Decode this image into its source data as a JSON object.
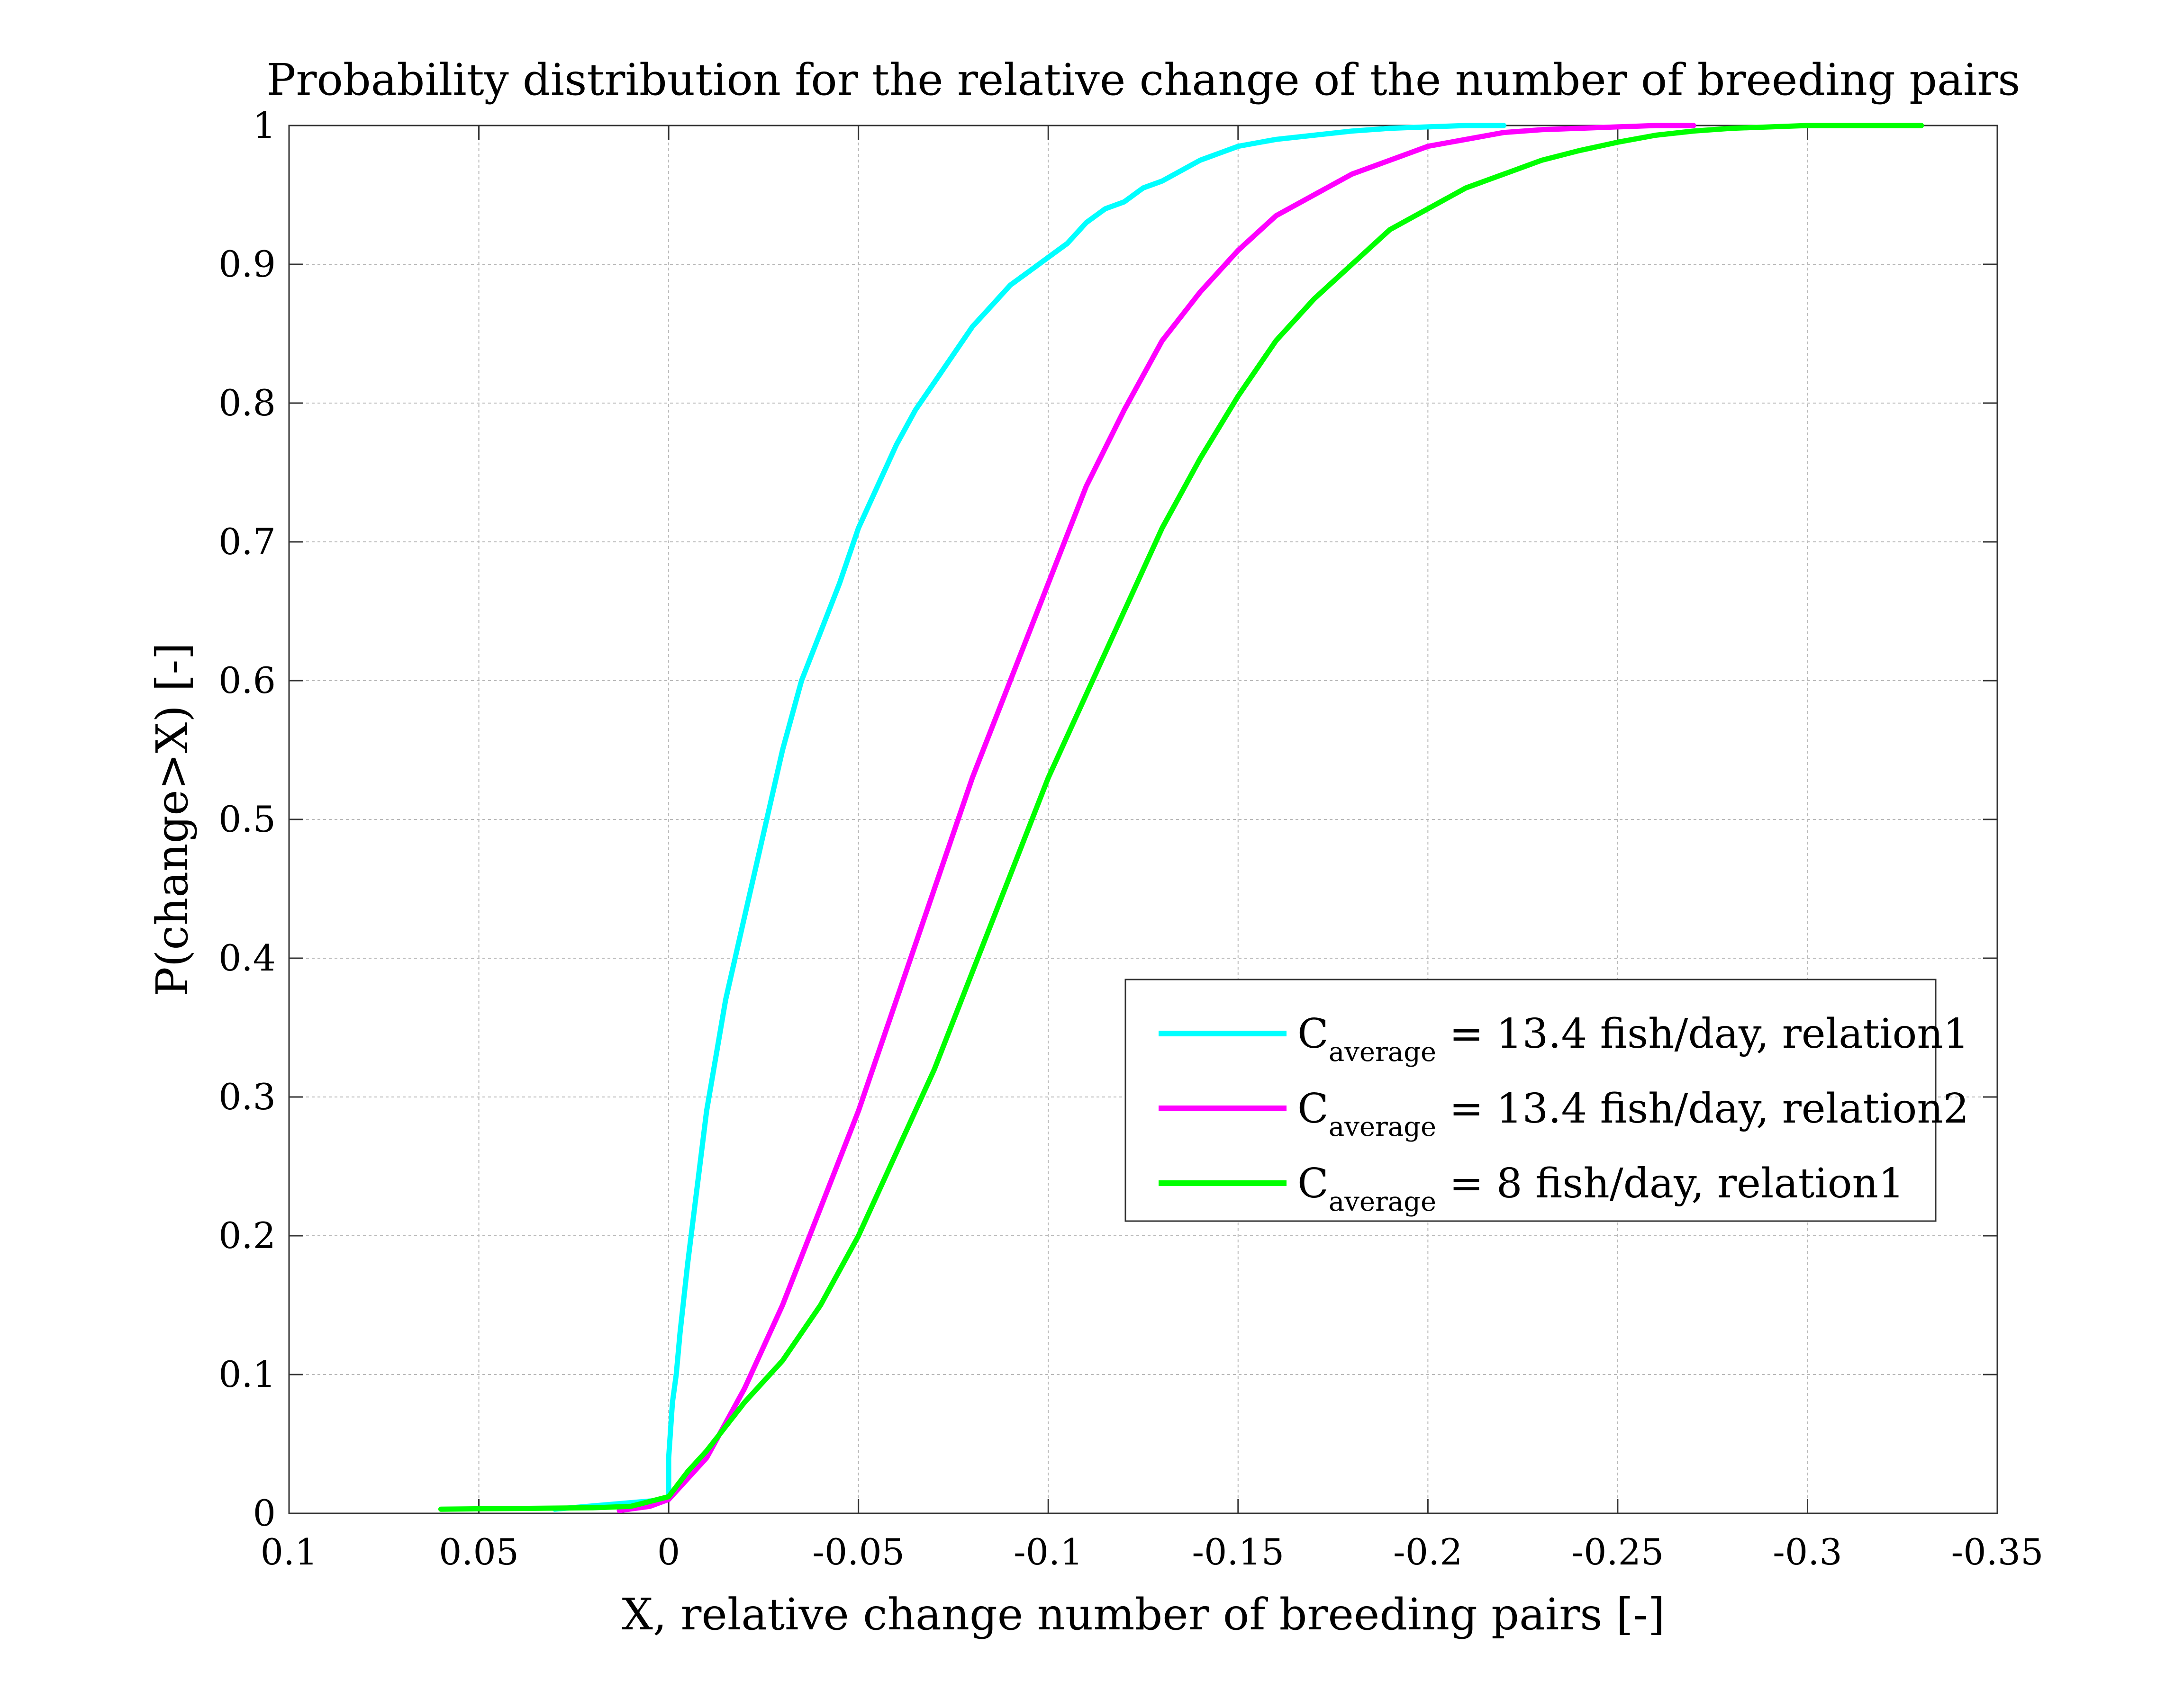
{
  "chart_data": {
    "type": "line",
    "title": "Probability distribution for the relative change of the number of breeding pairs",
    "xlabel": "X, relative change number of breeding pairs [-]",
    "ylabel": "P(change>X) [-]",
    "xlim": [
      0.1,
      -0.35
    ],
    "ylim": [
      0,
      1
    ],
    "x_reversed": true,
    "grid": true,
    "legend_position": "lower-right",
    "x_ticks": [
      "0.1",
      "0.05",
      "0",
      "-0.05",
      "-0.1",
      "-0.15",
      "-0.2",
      "-0.25",
      "-0.3",
      "-0.35"
    ],
    "x_tick_values": [
      0.1,
      0.05,
      0,
      -0.05,
      -0.1,
      -0.15,
      -0.2,
      -0.25,
      -0.3,
      -0.35
    ],
    "y_ticks": [
      "0",
      "0.1",
      "0.2",
      "0.3",
      "0.4",
      "0.5",
      "0.6",
      "0.7",
      "0.8",
      "0.9",
      "1"
    ],
    "y_tick_values": [
      0,
      0.1,
      0.2,
      0.3,
      0.4,
      0.5,
      0.6,
      0.7,
      0.8,
      0.9,
      1
    ],
    "series": [
      {
        "label_main": "C",
        "label_sub": "average",
        "label_rest": " = 13.4 fish/day, relation1",
        "color": "#00ffff",
        "x": [
          0.03,
          0.0,
          0.0,
          -0.001,
          -0.002,
          -0.003,
          -0.005,
          -0.01,
          -0.015,
          -0.02,
          -0.025,
          -0.03,
          -0.035,
          -0.04,
          -0.045,
          -0.05,
          -0.055,
          -0.06,
          -0.065,
          -0.07,
          -0.075,
          -0.08,
          -0.085,
          -0.09,
          -0.095,
          -0.1,
          -0.105,
          -0.11,
          -0.115,
          -0.12,
          -0.125,
          -0.13,
          -0.14,
          -0.15,
          -0.16,
          -0.17,
          -0.18,
          -0.19,
          -0.2,
          -0.21,
          -0.22
        ],
        "y": [
          0.003,
          0.01,
          0.04,
          0.08,
          0.1,
          0.13,
          0.18,
          0.29,
          0.37,
          0.43,
          0.49,
          0.55,
          0.6,
          0.635,
          0.67,
          0.71,
          0.74,
          0.77,
          0.795,
          0.815,
          0.835,
          0.855,
          0.87,
          0.885,
          0.895,
          0.905,
          0.915,
          0.93,
          0.94,
          0.945,
          0.955,
          0.96,
          0.975,
          0.985,
          0.99,
          0.993,
          0.996,
          0.998,
          0.999,
          1.0,
          1.0
        ]
      },
      {
        "label_main": "C",
        "label_sub": "average",
        "label_rest": " = 13.4 fish/day, relation2",
        "color": "#ff00ff",
        "x": [
          0.013,
          0.005,
          0.0,
          -0.005,
          -0.01,
          -0.02,
          -0.03,
          -0.04,
          -0.05,
          -0.06,
          -0.07,
          -0.08,
          -0.09,
          -0.1,
          -0.11,
          -0.12,
          -0.13,
          -0.14,
          -0.15,
          -0.16,
          -0.17,
          -0.18,
          -0.19,
          -0.2,
          -0.21,
          -0.22,
          -0.23,
          -0.24,
          -0.25,
          -0.26,
          -0.27
        ],
        "y": [
          0.002,
          0.005,
          0.01,
          0.025,
          0.04,
          0.09,
          0.15,
          0.22,
          0.29,
          0.37,
          0.45,
          0.53,
          0.6,
          0.67,
          0.74,
          0.795,
          0.845,
          0.88,
          0.91,
          0.935,
          0.95,
          0.965,
          0.975,
          0.985,
          0.99,
          0.995,
          0.997,
          0.998,
          0.999,
          1.0,
          1.0
        ]
      },
      {
        "label_main": "C",
        "label_sub": "average",
        "label_rest": " = 8 fish/day, relation1",
        "color": "#00ff00",
        "x": [
          0.06,
          0.02,
          0.01,
          0.0,
          -0.005,
          -0.01,
          -0.02,
          -0.03,
          -0.04,
          -0.05,
          -0.06,
          -0.07,
          -0.08,
          -0.09,
          -0.1,
          -0.11,
          -0.12,
          -0.13,
          -0.14,
          -0.15,
          -0.16,
          -0.17,
          -0.18,
          -0.19,
          -0.2,
          -0.21,
          -0.22,
          -0.23,
          -0.24,
          -0.25,
          -0.26,
          -0.27,
          -0.28,
          -0.3,
          -0.33
        ],
        "y": [
          0.003,
          0.004,
          0.005,
          0.012,
          0.03,
          0.045,
          0.08,
          0.11,
          0.15,
          0.2,
          0.26,
          0.32,
          0.39,
          0.46,
          0.53,
          0.59,
          0.65,
          0.71,
          0.76,
          0.805,
          0.845,
          0.875,
          0.9,
          0.925,
          0.94,
          0.955,
          0.965,
          0.975,
          0.982,
          0.988,
          0.993,
          0.996,
          0.998,
          1.0,
          1.0
        ]
      }
    ]
  }
}
